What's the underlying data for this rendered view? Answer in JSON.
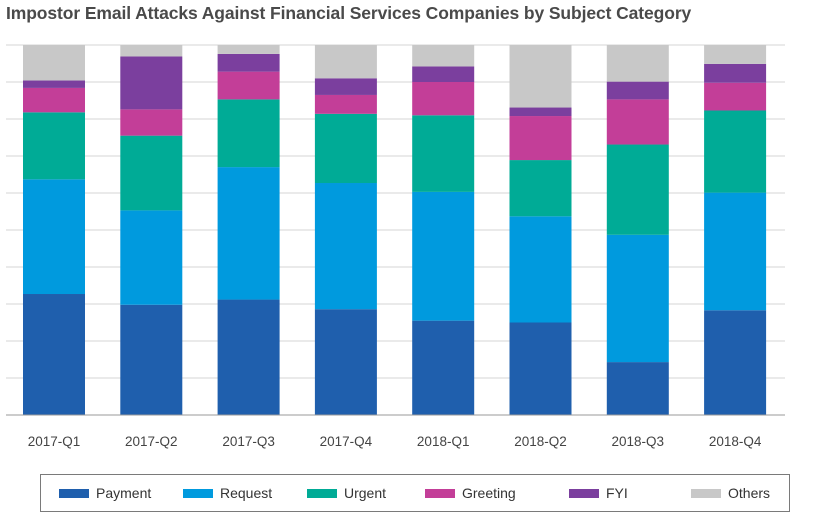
{
  "chart_data": {
    "type": "bar",
    "stacked": true,
    "normalized": true,
    "title": "Impostor Email Attacks Against Financial Services Companies by Subject Category",
    "xlabel": "",
    "ylabel": "",
    "ylim": [
      0,
      100
    ],
    "grid": true,
    "legend_position": "bottom",
    "categories": [
      "2017-Q1",
      "2017-Q2",
      "2017-Q3",
      "2017-Q4",
      "2018-Q1",
      "2018-Q2",
      "2018-Q3",
      "2018-Q4"
    ],
    "series": [
      {
        "name": "Payment",
        "color": "#1f5fad",
        "values": [
          32.7,
          29.8,
          31.2,
          28.6,
          25.5,
          25.0,
          14.3,
          28.3
        ]
      },
      {
        "name": "Request",
        "color": "#009ade",
        "values": [
          31.0,
          25.5,
          35.8,
          34.1,
          34.8,
          28.7,
          34.4,
          31.8
        ]
      },
      {
        "name": "Urgent",
        "color": "#00ab96",
        "values": [
          18.1,
          20.2,
          18.3,
          18.7,
          20.7,
          15.2,
          24.4,
          22.2
        ]
      },
      {
        "name": "Greeting",
        "color": "#c33e98",
        "values": [
          6.6,
          7.1,
          7.5,
          5.1,
          9.0,
          11.9,
          12.2,
          7.5
        ]
      },
      {
        "name": "FYI",
        "color": "#7b3f9e",
        "values": [
          2.0,
          14.3,
          4.8,
          4.5,
          4.2,
          2.3,
          4.8,
          5.1
        ]
      },
      {
        "name": "Others",
        "color": "#c8c8c8",
        "values": [
          9.6,
          3.1,
          2.4,
          9.0,
          5.8,
          16.9,
          9.9,
          5.1
        ]
      }
    ]
  }
}
